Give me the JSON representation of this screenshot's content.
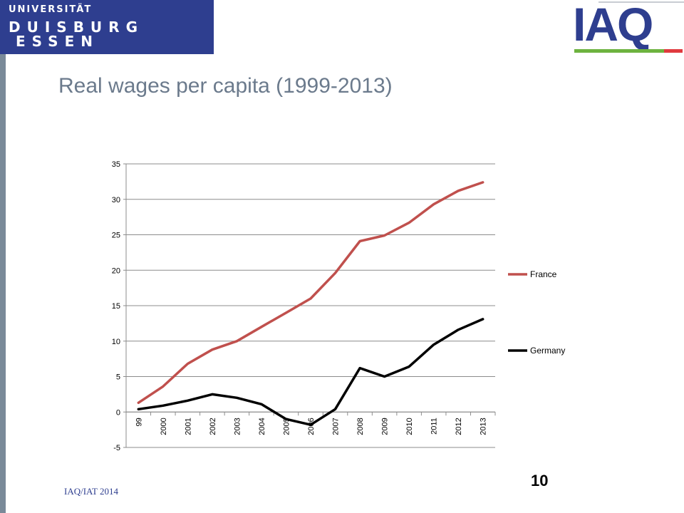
{
  "header": {
    "university_logo": {
      "line1": "UNIVERSITÄT",
      "line2": "DUISBURG",
      "line3": "ESSEN",
      "color": "#2e3e8f"
    },
    "iaq_logo": {
      "text": "IAQ",
      "colors": {
        "text": "#2e3e8f",
        "green": "#6db33f",
        "red": "#e03a3e"
      }
    }
  },
  "slide": {
    "title": "Real wages per capita (1999-2013)"
  },
  "footer": {
    "text": "IAQ/IAT 2014",
    "page_number": "10"
  },
  "chart_data": {
    "type": "line",
    "title": "",
    "xlabel": "",
    "ylabel": "",
    "categories": [
      "99",
      "2000",
      "2001",
      "2002",
      "2003",
      "2004",
      "2005",
      "2006",
      "2007",
      "2008",
      "2009",
      "2010",
      "2011",
      "2012",
      "2013"
    ],
    "ylim": [
      -5,
      35
    ],
    "yticks": [
      35,
      30,
      25,
      20,
      15,
      10,
      5,
      0,
      -5
    ],
    "grid": true,
    "legend_position": "right",
    "series": [
      {
        "name": "France",
        "color": "#c0504d",
        "values": [
          1.3,
          3.6,
          6.8,
          8.8,
          10.0,
          12.0,
          14.0,
          16.0,
          19.6,
          24.1,
          24.9,
          26.7,
          29.3,
          31.2,
          32.4
        ]
      },
      {
        "name": "Germany",
        "color": "#000000",
        "values": [
          0.4,
          0.9,
          1.6,
          2.5,
          2.0,
          1.1,
          -1.0,
          -1.8,
          0.4,
          6.2,
          5.0,
          6.4,
          9.5,
          11.6,
          13.1
        ]
      }
    ]
  }
}
